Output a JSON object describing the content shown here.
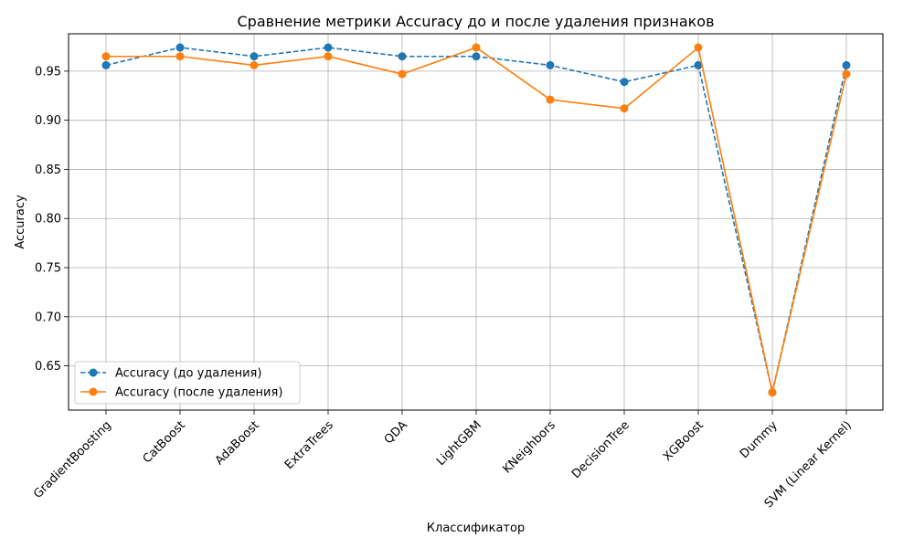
{
  "chart_data": {
    "type": "line",
    "title": "Сравнение метрики Accuracy до и после удаления признаков",
    "xlabel": "Классификатор",
    "ylabel": "Accuracy",
    "categories": [
      "GradientBoosting",
      "CatBoost",
      "AdaBoost",
      "ExtraTrees",
      "QDA",
      "LightGBM",
      "KNeighbors",
      "DecisionTree",
      "XGBoost",
      "Dummy",
      "SVM (Linear Kernel)"
    ],
    "ylim": [
      0.605,
      0.988
    ],
    "yticks": [
      0.65,
      0.7,
      0.75,
      0.8,
      0.85,
      0.9,
      0.95
    ],
    "ytick_labels": [
      "0.65",
      "0.70",
      "0.75",
      "0.80",
      "0.85",
      "0.90",
      "0.95"
    ],
    "grid": true,
    "legend_position": "lower-left",
    "series": [
      {
        "name": "Accuracy (до удаления)",
        "color": "#1f77b4",
        "line_style": "dashed",
        "marker": "circle",
        "values": [
          0.956,
          0.974,
          0.965,
          0.974,
          0.965,
          0.965,
          0.956,
          0.939,
          0.956,
          0.623,
          0.956
        ]
      },
      {
        "name": "Accuracy (после удаления)",
        "color": "#ff7f0e",
        "line_style": "solid",
        "marker": "circle",
        "values": [
          0.965,
          0.965,
          0.956,
          0.965,
          0.947,
          0.974,
          0.921,
          0.912,
          0.974,
          0.623,
          0.947
        ]
      }
    ]
  }
}
